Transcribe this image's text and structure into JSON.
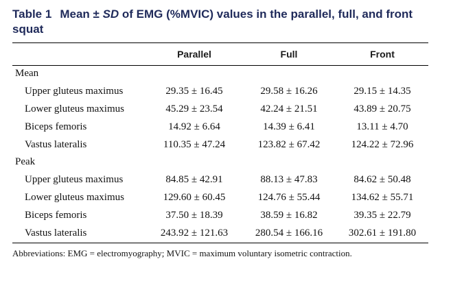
{
  "caption": {
    "number": "Table 1",
    "text_before": "Mean ± ",
    "text_sd": "SD",
    "text_after": " of EMG (%MVIC) values in the parallel, full, and front squat"
  },
  "header": {
    "col0": "",
    "col1": "Parallel",
    "col2": "Full",
    "col3": "Front"
  },
  "groups": [
    {
      "label": "Mean",
      "rows": [
        {
          "muscle": "Upper gluteus maximus",
          "parallel": "29.35 ± 16.45",
          "full": "29.58 ± 16.26",
          "front": "29.15 ± 14.35"
        },
        {
          "muscle": "Lower gluteus maximus",
          "parallel": "45.29 ± 23.54",
          "full": "42.24 ± 21.51",
          "front": "43.89 ± 20.75"
        },
        {
          "muscle": "Biceps femoris",
          "parallel": "14.92 ± 6.64",
          "full": "14.39 ± 6.41",
          "front": "13.11 ± 4.70"
        },
        {
          "muscle": "Vastus lateralis",
          "parallel": "110.35 ± 47.24",
          "full": "123.82 ± 67.42",
          "front": "124.22 ± 72.96"
        }
      ]
    },
    {
      "label": "Peak",
      "rows": [
        {
          "muscle": "Upper gluteus maximus",
          "parallel": "84.85 ± 42.91",
          "full": "88.13 ± 47.83",
          "front": "84.62 ± 50.48"
        },
        {
          "muscle": "Lower gluteus maximus",
          "parallel": "129.60 ± 60.45",
          "full": "124.76 ± 55.44",
          "front": "134.62 ± 55.71"
        },
        {
          "muscle": "Biceps femoris",
          "parallel": "37.50 ± 18.39",
          "full": "38.59 ± 16.82",
          "front": "39.35 ± 22.79"
        },
        {
          "muscle": "Vastus lateralis",
          "parallel": "243.92 ± 121.63",
          "full": "280.54 ± 166.16",
          "front": "302.61 ± 191.80"
        }
      ]
    }
  ],
  "footnote": "Abbreviations: EMG = electromyography; MVIC = maximum voluntary isometric contraction."
}
